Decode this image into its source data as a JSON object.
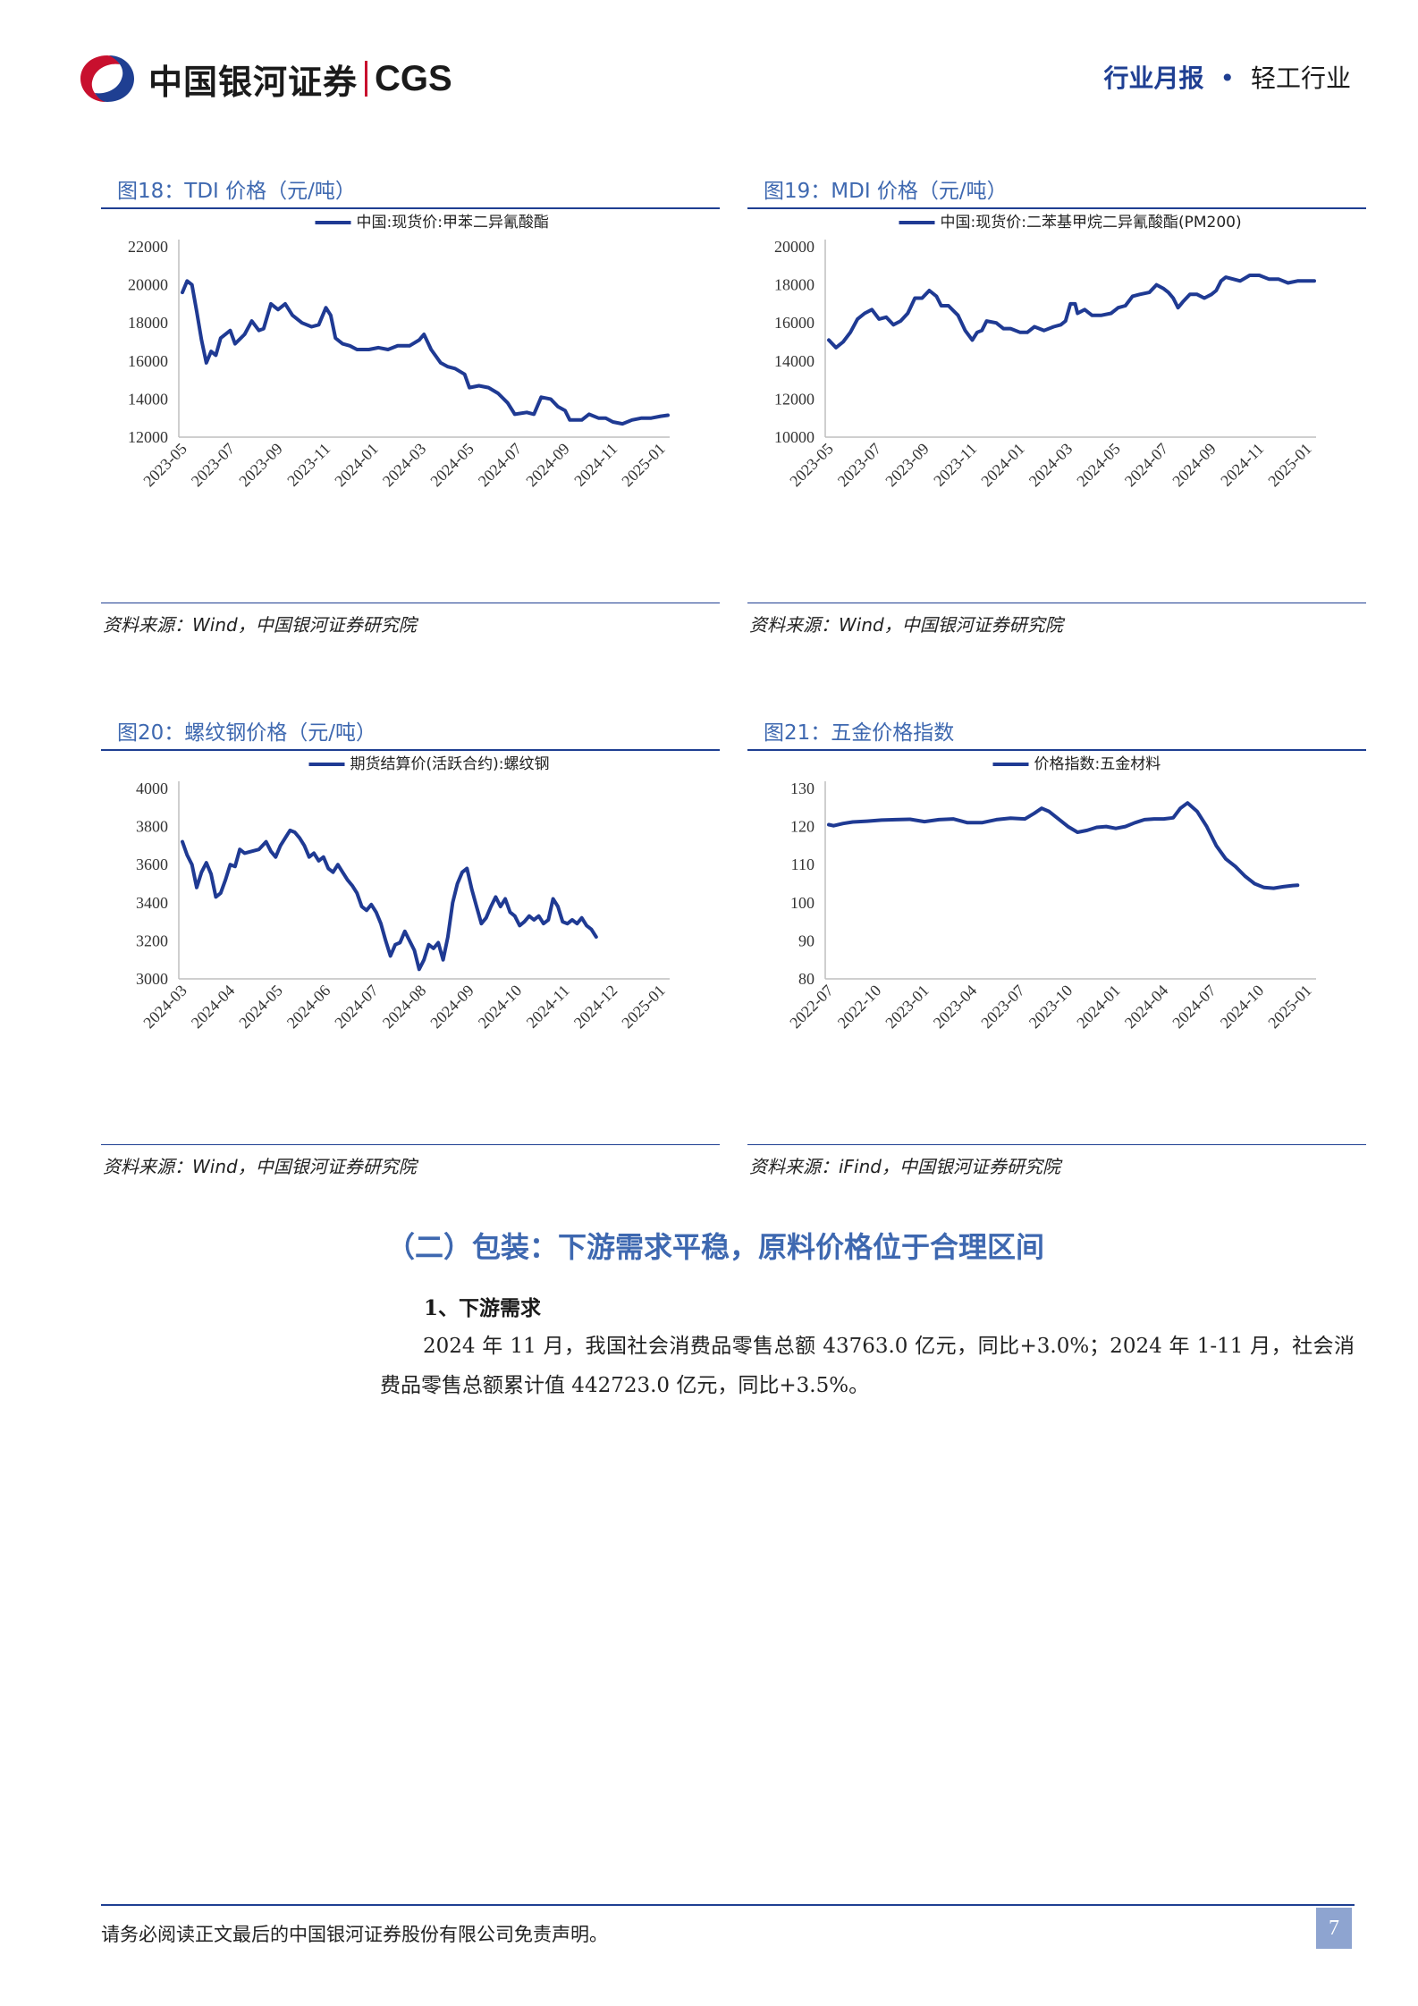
{
  "header": {
    "logo_text": "中国银河证券",
    "logo_en": "CGS",
    "report_type": "行业月报",
    "dot": "•",
    "industry": "轻工行业"
  },
  "figures": [
    {
      "title": "图18：TDI 价格（元/吨）",
      "source": "资料来源：Wind，中国银河证券研究院",
      "chart_data": {
        "type": "line",
        "series": [
          {
            "name": "中国:现货价:甲苯二异氰酸酯",
            "color": "#1f3a93"
          }
        ],
        "x_ticks": [
          "2023-05",
          "2023-07",
          "2023-09",
          "2023-11",
          "2024-01",
          "2024-03",
          "2024-05",
          "2024-07",
          "2024-09",
          "2024-11",
          "2025-01"
        ],
        "y_ticks": [
          12000,
          14000,
          16000,
          18000,
          20000,
          22000
        ],
        "ylim": [
          12000,
          22000
        ],
        "points": [
          [
            0,
            19600
          ],
          [
            0.1,
            20200
          ],
          [
            0.2,
            20000
          ],
          [
            0.3,
            18600
          ],
          [
            0.4,
            17100
          ],
          [
            0.5,
            15900
          ],
          [
            0.6,
            16500
          ],
          [
            0.7,
            16300
          ],
          [
            0.8,
            17200
          ],
          [
            1.0,
            17600
          ],
          [
            1.1,
            16900
          ],
          [
            1.3,
            17400
          ],
          [
            1.45,
            18100
          ],
          [
            1.6,
            17600
          ],
          [
            1.7,
            17700
          ],
          [
            1.85,
            19000
          ],
          [
            2.0,
            18700
          ],
          [
            2.15,
            19000
          ],
          [
            2.3,
            18400
          ],
          [
            2.5,
            18000
          ],
          [
            2.7,
            17800
          ],
          [
            2.85,
            17900
          ],
          [
            3.0,
            18800
          ],
          [
            3.1,
            18400
          ],
          [
            3.2,
            17200
          ],
          [
            3.35,
            16900
          ],
          [
            3.5,
            16800
          ],
          [
            3.65,
            16600
          ],
          [
            3.9,
            16600
          ],
          [
            4.1,
            16700
          ],
          [
            4.3,
            16600
          ],
          [
            4.5,
            16800
          ],
          [
            4.75,
            16800
          ],
          [
            4.95,
            17100
          ],
          [
            5.05,
            17400
          ],
          [
            5.2,
            16600
          ],
          [
            5.4,
            15900
          ],
          [
            5.55,
            15700
          ],
          [
            5.7,
            15600
          ],
          [
            5.9,
            15300
          ],
          [
            6.0,
            14600
          ],
          [
            6.2,
            14700
          ],
          [
            6.4,
            14600
          ],
          [
            6.6,
            14300
          ],
          [
            6.8,
            13800
          ],
          [
            6.95,
            13200
          ],
          [
            7.2,
            13300
          ],
          [
            7.35,
            13200
          ],
          [
            7.5,
            14100
          ],
          [
            7.7,
            14000
          ],
          [
            7.85,
            13600
          ],
          [
            8.0,
            13400
          ],
          [
            8.1,
            12900
          ],
          [
            8.35,
            12900
          ],
          [
            8.5,
            13200
          ],
          [
            8.7,
            13000
          ],
          [
            8.85,
            13000
          ],
          [
            9.0,
            12800
          ],
          [
            9.2,
            12700
          ],
          [
            9.4,
            12900
          ],
          [
            9.6,
            13000
          ],
          [
            9.8,
            13000
          ],
          [
            10.0,
            13100
          ],
          [
            10.15,
            13150
          ]
        ]
      }
    },
    {
      "title": "图19：MDI 价格（元/吨）",
      "source": "资料来源：Wind，中国银河证券研究院",
      "chart_data": {
        "type": "line",
        "series": [
          {
            "name": "中国:现货价:二苯基甲烷二异氰酸酯(PM200)",
            "color": "#1f3a93"
          }
        ],
        "x_ticks": [
          "2023-05",
          "2023-07",
          "2023-09",
          "2023-11",
          "2024-01",
          "2024-03",
          "2024-05",
          "2024-07",
          "2024-09",
          "2024-11",
          "2025-01"
        ],
        "y_ticks": [
          10000,
          12000,
          14000,
          16000,
          18000,
          20000
        ],
        "ylim": [
          10000,
          20000
        ],
        "points": [
          [
            0,
            15100
          ],
          [
            0.15,
            14700
          ],
          [
            0.3,
            15000
          ],
          [
            0.45,
            15500
          ],
          [
            0.6,
            16200
          ],
          [
            0.75,
            16500
          ],
          [
            0.9,
            16700
          ],
          [
            1.05,
            16200
          ],
          [
            1.2,
            16300
          ],
          [
            1.35,
            15900
          ],
          [
            1.5,
            16100
          ],
          [
            1.65,
            16500
          ],
          [
            1.8,
            17300
          ],
          [
            1.95,
            17300
          ],
          [
            2.1,
            17700
          ],
          [
            2.25,
            17400
          ],
          [
            2.35,
            16900
          ],
          [
            2.5,
            16900
          ],
          [
            2.7,
            16400
          ],
          [
            2.85,
            15600
          ],
          [
            3.0,
            15100
          ],
          [
            3.1,
            15500
          ],
          [
            3.2,
            15600
          ],
          [
            3.3,
            16100
          ],
          [
            3.5,
            16000
          ],
          [
            3.65,
            15700
          ],
          [
            3.8,
            15700
          ],
          [
            4.0,
            15500
          ],
          [
            4.15,
            15500
          ],
          [
            4.3,
            15800
          ],
          [
            4.5,
            15600
          ],
          [
            4.7,
            15800
          ],
          [
            4.85,
            15900
          ],
          [
            4.95,
            16100
          ],
          [
            5.05,
            17000
          ],
          [
            5.15,
            17000
          ],
          [
            5.2,
            16500
          ],
          [
            5.35,
            16700
          ],
          [
            5.5,
            16400
          ],
          [
            5.7,
            16400
          ],
          [
            5.9,
            16500
          ],
          [
            6.05,
            16800
          ],
          [
            6.2,
            16900
          ],
          [
            6.35,
            17400
          ],
          [
            6.5,
            17500
          ],
          [
            6.7,
            17600
          ],
          [
            6.85,
            18000
          ],
          [
            7.0,
            17800
          ],
          [
            7.1,
            17600
          ],
          [
            7.2,
            17300
          ],
          [
            7.3,
            16800
          ],
          [
            7.4,
            17100
          ],
          [
            7.55,
            17500
          ],
          [
            7.7,
            17500
          ],
          [
            7.85,
            17300
          ],
          [
            8.0,
            17500
          ],
          [
            8.1,
            17700
          ],
          [
            8.2,
            18200
          ],
          [
            8.3,
            18400
          ],
          [
            8.45,
            18300
          ],
          [
            8.6,
            18200
          ],
          [
            8.8,
            18500
          ],
          [
            9.0,
            18500
          ],
          [
            9.2,
            18300
          ],
          [
            9.4,
            18300
          ],
          [
            9.6,
            18100
          ],
          [
            9.8,
            18200
          ],
          [
            10.0,
            18200
          ],
          [
            10.15,
            18200
          ]
        ]
      }
    },
    {
      "title": "图20：螺纹钢价格（元/吨）",
      "source": "资料来源：Wind，中国银河证券研究院",
      "chart_data": {
        "type": "line",
        "series": [
          {
            "name": "期货结算价(活跃合约):螺纹钢",
            "color": "#1f3a93"
          }
        ],
        "x_ticks": [
          "2024-03",
          "2024-04",
          "2024-05",
          "2024-06",
          "2024-07",
          "2024-08",
          "2024-09",
          "2024-10",
          "2024-11",
          "2024-12",
          "2025-01"
        ],
        "y_ticks": [
          3000,
          3200,
          3400,
          3600,
          3800,
          4000
        ],
        "ylim": [
          3000,
          4000
        ],
        "points": [
          [
            0,
            3720
          ],
          [
            0.1,
            3650
          ],
          [
            0.2,
            3600
          ],
          [
            0.3,
            3480
          ],
          [
            0.4,
            3560
          ],
          [
            0.5,
            3610
          ],
          [
            0.6,
            3550
          ],
          [
            0.7,
            3430
          ],
          [
            0.8,
            3450
          ],
          [
            0.9,
            3520
          ],
          [
            1.0,
            3600
          ],
          [
            1.1,
            3590
          ],
          [
            1.2,
            3680
          ],
          [
            1.3,
            3660
          ],
          [
            1.45,
            3670
          ],
          [
            1.6,
            3680
          ],
          [
            1.75,
            3720
          ],
          [
            1.85,
            3670
          ],
          [
            1.95,
            3640
          ],
          [
            2.05,
            3700
          ],
          [
            2.15,
            3740
          ],
          [
            2.25,
            3780
          ],
          [
            2.35,
            3770
          ],
          [
            2.45,
            3740
          ],
          [
            2.55,
            3700
          ],
          [
            2.65,
            3640
          ],
          [
            2.75,
            3660
          ],
          [
            2.85,
            3620
          ],
          [
            2.95,
            3640
          ],
          [
            3.05,
            3580
          ],
          [
            3.15,
            3560
          ],
          [
            3.25,
            3600
          ],
          [
            3.35,
            3560
          ],
          [
            3.45,
            3520
          ],
          [
            3.55,
            3490
          ],
          [
            3.65,
            3450
          ],
          [
            3.75,
            3380
          ],
          [
            3.85,
            3360
          ],
          [
            3.95,
            3390
          ],
          [
            4.05,
            3350
          ],
          [
            4.15,
            3290
          ],
          [
            4.25,
            3200
          ],
          [
            4.35,
            3120
          ],
          [
            4.45,
            3180
          ],
          [
            4.55,
            3190
          ],
          [
            4.65,
            3250
          ],
          [
            4.75,
            3200
          ],
          [
            4.85,
            3150
          ],
          [
            4.95,
            3050
          ],
          [
            5.05,
            3100
          ],
          [
            5.15,
            3180
          ],
          [
            5.25,
            3160
          ],
          [
            5.35,
            3190
          ],
          [
            5.45,
            3100
          ],
          [
            5.55,
            3220
          ],
          [
            5.65,
            3400
          ],
          [
            5.75,
            3500
          ],
          [
            5.85,
            3560
          ],
          [
            5.95,
            3580
          ],
          [
            6.05,
            3470
          ],
          [
            6.15,
            3380
          ],
          [
            6.25,
            3290
          ],
          [
            6.35,
            3320
          ],
          [
            6.45,
            3380
          ],
          [
            6.55,
            3430
          ],
          [
            6.65,
            3380
          ],
          [
            6.75,
            3420
          ],
          [
            6.85,
            3350
          ],
          [
            6.95,
            3330
          ],
          [
            7.05,
            3280
          ],
          [
            7.15,
            3300
          ],
          [
            7.25,
            3330
          ],
          [
            7.35,
            3310
          ],
          [
            7.45,
            3330
          ],
          [
            7.55,
            3290
          ],
          [
            7.65,
            3310
          ],
          [
            7.75,
            3420
          ],
          [
            7.85,
            3380
          ],
          [
            7.95,
            3300
          ],
          [
            8.05,
            3290
          ],
          [
            8.15,
            3310
          ],
          [
            8.25,
            3290
          ],
          [
            8.35,
            3320
          ],
          [
            8.45,
            3280
          ],
          [
            8.55,
            3260
          ],
          [
            8.65,
            3220
          ]
        ]
      }
    },
    {
      "title": "图21：五金价格指数",
      "source": "资料来源：iFind，中国银河证券研究院",
      "chart_data": {
        "type": "line",
        "series": [
          {
            "name": "价格指数:五金材料",
            "color": "#1f3a93"
          }
        ],
        "x_ticks": [
          "2022-07",
          "2022-10",
          "2023-01",
          "2023-04",
          "2023-07",
          "2023-10",
          "2024-01",
          "2024-04",
          "2024-07",
          "2024-10",
          "2025-01"
        ],
        "y_ticks": [
          80,
          90,
          100,
          110,
          120,
          130
        ],
        "ylim": [
          80,
          130
        ],
        "points": [
          [
            0,
            120.5
          ],
          [
            0.1,
            120.2
          ],
          [
            0.3,
            120.8
          ],
          [
            0.5,
            121.2
          ],
          [
            0.8,
            121.4
          ],
          [
            1.1,
            121.7
          ],
          [
            1.4,
            121.8
          ],
          [
            1.7,
            121.9
          ],
          [
            2.0,
            121.3
          ],
          [
            2.3,
            121.8
          ],
          [
            2.6,
            122.0
          ],
          [
            2.9,
            121.0
          ],
          [
            3.2,
            121.0
          ],
          [
            3.5,
            121.8
          ],
          [
            3.8,
            122.2
          ],
          [
            4.1,
            122.0
          ],
          [
            4.3,
            123.5
          ],
          [
            4.45,
            124.8
          ],
          [
            4.6,
            124.0
          ],
          [
            4.8,
            122.0
          ],
          [
            5.0,
            120.0
          ],
          [
            5.2,
            118.5
          ],
          [
            5.4,
            119.0
          ],
          [
            5.6,
            119.8
          ],
          [
            5.8,
            120.0
          ],
          [
            6.0,
            119.5
          ],
          [
            6.2,
            120.0
          ],
          [
            6.4,
            121.0
          ],
          [
            6.6,
            121.8
          ],
          [
            6.8,
            122.0
          ],
          [
            7.0,
            122.0
          ],
          [
            7.2,
            122.3
          ],
          [
            7.35,
            124.8
          ],
          [
            7.5,
            126.2
          ],
          [
            7.7,
            124.0
          ],
          [
            7.9,
            120.0
          ],
          [
            8.1,
            115.0
          ],
          [
            8.3,
            111.5
          ],
          [
            8.5,
            109.5
          ],
          [
            8.7,
            107.0
          ],
          [
            8.9,
            105.0
          ],
          [
            9.1,
            104.0
          ],
          [
            9.3,
            103.8
          ],
          [
            9.5,
            104.2
          ],
          [
            9.7,
            104.5
          ],
          [
            9.8,
            104.6
          ]
        ]
      }
    }
  ],
  "section": {
    "title": "（二）包装：下游需求平稳，原料价格位于合理区间",
    "subtitle": "1、下游需求",
    "paragraph": "2024 年 11 月，我国社会消费品零售总额 43763.0 亿元，同比+3.0%；2024 年 1-11 月，社会消费品零售总额累计值 442723.0 亿元，同比+3.5%。"
  },
  "footer": {
    "disclaimer": "请务必阅读正文最后的中国银河证券股份有限公司免责声明。",
    "page_number": "7"
  }
}
